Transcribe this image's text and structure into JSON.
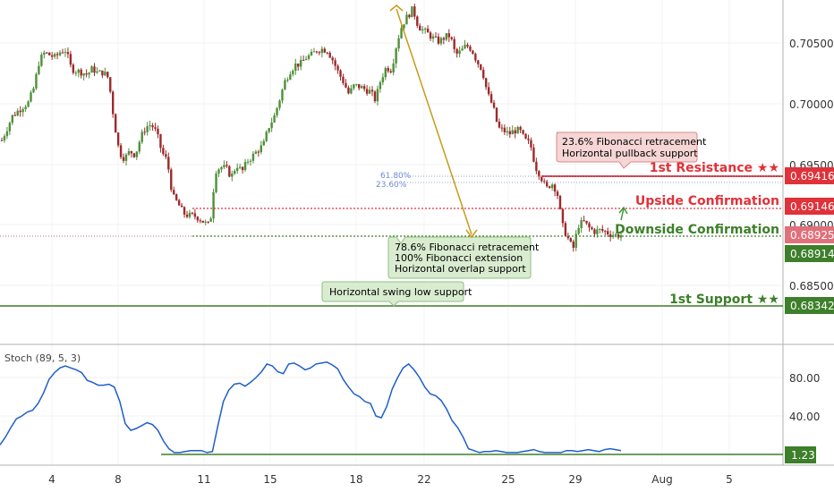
{
  "colors": {
    "up": "#4f8f3a",
    "down": "#9c2a2a",
    "resistance": "#e0323a",
    "support": "#3d7f2a",
    "stoch_line": "#1f5fc8",
    "arrow": "#c99a1a",
    "fib_text": "#6a8ccf",
    "annot_green_fill": "#d9ecd0",
    "annot_red_fill": "#f6d5d5"
  },
  "chart_data": [
    {
      "type": "candlestick",
      "ylim": [
        0.6815,
        0.7085
      ],
      "y_ticks": [
        "0.70500",
        "0.70000",
        "0.69500",
        "0.69000",
        "0.68500"
      ],
      "x_ticks": [
        "4",
        "8",
        "11",
        "15",
        "18",
        "22",
        "25",
        "29",
        "Aug",
        "5"
      ],
      "close_path": [
        0.697,
        0.698,
        0.699,
        0.6994,
        0.6998,
        0.7001,
        0.7013,
        0.7035,
        0.7042,
        0.704,
        0.7038,
        0.7043,
        0.7044,
        0.7029,
        0.7027,
        0.7026,
        0.7024,
        0.7029,
        0.7025,
        0.7026,
        0.7021,
        0.6987,
        0.696,
        0.6955,
        0.6961,
        0.6958,
        0.6972,
        0.6981,
        0.6983,
        0.6976,
        0.696,
        0.6953,
        0.6924,
        0.6918,
        0.691,
        0.6908,
        0.6908,
        0.6906,
        0.6902,
        0.69,
        0.6945,
        0.6948,
        0.6947,
        0.694,
        0.695,
        0.6944,
        0.6953,
        0.6957,
        0.6962,
        0.6966,
        0.6981,
        0.6989,
        0.7003,
        0.7018,
        0.7027,
        0.7032,
        0.7033,
        0.7038,
        0.704,
        0.7044,
        0.7045,
        0.7044,
        0.7036,
        0.7026,
        0.7018,
        0.7008,
        0.7015,
        0.7014,
        0.7012,
        0.701,
        0.7003,
        0.702,
        0.703,
        0.7028,
        0.705,
        0.7065,
        0.7072,
        0.7078,
        0.7064,
        0.706,
        0.7057,
        0.7053,
        0.7051,
        0.7055,
        0.7056,
        0.704,
        0.7043,
        0.7048,
        0.7045,
        0.7035,
        0.7028,
        0.7008,
        0.6998,
        0.698,
        0.6978,
        0.6975,
        0.6978,
        0.6978,
        0.697,
        0.6967,
        0.6948,
        0.694,
        0.693,
        0.6935,
        0.6928,
        0.69,
        0.689,
        0.688,
        0.69,
        0.6903,
        0.6898,
        0.6895,
        0.6896,
        0.6895,
        0.6893,
        0.6892,
        0.6892
      ],
      "price_levels": [
        {
          "name": "1st Resistance ★★",
          "value": "0.69416"
        },
        {
          "name": "Upside Confirmation",
          "value": "0.69146"
        },
        {
          "name": "Downside Confirmation",
          "value": "0.68914"
        },
        {
          "name": "1st Support ★★",
          "value": "0.68342"
        }
      ],
      "current_price": "0.68925",
      "fib_labels": [
        "61.80%",
        "23.60%"
      ],
      "annotations": [
        {
          "lines": [
            "23.6% Fibonacci retracement",
            "Horizontal pullback support"
          ]
        },
        {
          "lines": [
            "78.6% Fibonacci retracement",
            "100% Fibonacci extension",
            "Horizontal overlap support"
          ]
        },
        {
          "lines": [
            "Horizontal swing low support"
          ]
        }
      ]
    },
    {
      "type": "line",
      "title": "Stoch (89, 5, 3)",
      "ylim": [
        0,
        100
      ],
      "y_ticks": [
        "80.00",
        "40.00"
      ],
      "level_label": "1.23",
      "values": [
        10,
        18,
        28,
        37,
        40,
        44,
        46,
        53,
        64,
        78,
        85,
        90,
        92,
        90,
        88,
        85,
        77,
        75,
        72,
        72,
        73,
        70,
        55,
        32,
        25,
        27,
        30,
        33,
        31,
        25,
        14,
        6,
        2,
        2,
        3,
        4,
        4,
        4,
        2,
        3,
        30,
        55,
        67,
        73,
        74,
        71,
        75,
        80,
        86,
        94,
        92,
        86,
        84,
        94,
        95,
        92,
        88,
        90,
        94,
        95,
        96,
        93,
        89,
        78,
        70,
        63,
        60,
        55,
        53,
        40,
        38,
        50,
        68,
        80,
        90,
        94,
        88,
        80,
        70,
        63,
        61,
        56,
        47,
        35,
        28,
        18,
        6,
        4,
        2,
        3,
        3,
        4,
        3,
        2,
        2,
        2,
        3,
        4,
        5,
        3,
        2,
        2,
        2,
        2,
        4,
        4,
        3,
        4,
        5,
        4,
        3,
        5,
        6,
        5,
        4
      ]
    }
  ]
}
